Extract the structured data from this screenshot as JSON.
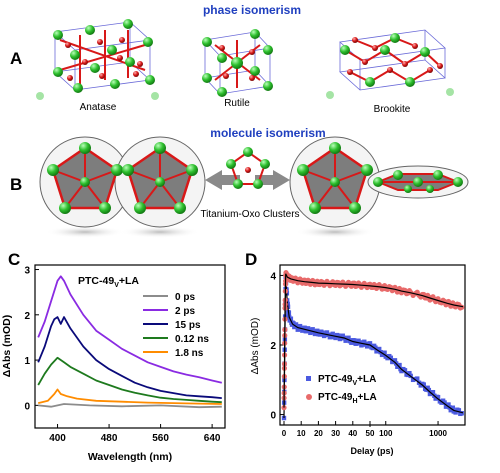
{
  "panels": {
    "A": {
      "letter": "A",
      "title": "phase isomerism",
      "structures": [
        "Anatase",
        "Rutile",
        "Brookite"
      ]
    },
    "B": {
      "letter": "B",
      "title": "molecule isomerism",
      "caption": "Titanium-Oxo Clusters"
    },
    "C": {
      "letter": "C",
      "sample_label": "PTC-49",
      "sample_sub": "V",
      "sample_suffix": "+LA"
    },
    "D": {
      "letter": "D"
    }
  },
  "colors": {
    "title_blue": "#1f3fbf",
    "ti_green": "#2dbf2d",
    "oxygen_red": "#d81818",
    "cell_blue": "#6a6ad8",
    "poly_gray": "#7d7d7d"
  },
  "chart_data": [
    {
      "type": "line",
      "panel": "C",
      "xlabel": "Wavelength (nm)",
      "ylabel": "ΔAbs (mOD)",
      "xlim": [
        365,
        660
      ],
      "ylim": [
        -0.5,
        3.1
      ],
      "xticks": [
        400,
        480,
        560,
        640
      ],
      "yticks": [
        0,
        1,
        2,
        3
      ],
      "legend_position": "top-right",
      "series": [
        {
          "name": "0 ps",
          "color": "#8c8c8c",
          "x": [
            370,
            390,
            410,
            450,
            500,
            560,
            620,
            655
          ],
          "y": [
            0.0,
            -0.03,
            0.03,
            0.0,
            -0.02,
            0.0,
            -0.04,
            -0.03
          ]
        },
        {
          "name": "2 ps",
          "color": "#8a2be2",
          "x": [
            370,
            380,
            390,
            400,
            405,
            410,
            420,
            440,
            460,
            480,
            500,
            520,
            540,
            560,
            580,
            600,
            620,
            640,
            655
          ],
          "y": [
            1.5,
            1.85,
            2.3,
            2.75,
            2.85,
            2.75,
            2.45,
            2.0,
            1.65,
            1.45,
            1.25,
            1.1,
            0.95,
            0.85,
            0.75,
            0.68,
            0.62,
            0.55,
            0.5
          ]
        },
        {
          "name": "15 ps",
          "color": "#0a0a7a",
          "x": [
            370,
            380,
            390,
            395,
            400,
            405,
            410,
            420,
            440,
            460,
            480,
            500,
            520,
            540,
            560,
            580,
            600,
            620,
            640,
            655
          ],
          "y": [
            0.95,
            1.3,
            1.75,
            1.9,
            1.95,
            1.8,
            1.95,
            1.7,
            1.3,
            1.0,
            0.8,
            0.65,
            0.5,
            0.4,
            0.32,
            0.27,
            0.22,
            0.2,
            0.18,
            0.16
          ]
        },
        {
          "name": "0.12 ns",
          "color": "#1e7a1e",
          "x": [
            370,
            380,
            390,
            400,
            410,
            420,
            440,
            460,
            480,
            500,
            520,
            540,
            560,
            580,
            600,
            620,
            640,
            655
          ],
          "y": [
            0.45,
            0.7,
            0.9,
            1.05,
            0.95,
            0.85,
            0.7,
            0.55,
            0.45,
            0.35,
            0.28,
            0.22,
            0.17,
            0.14,
            0.12,
            0.1,
            0.08,
            0.07
          ]
        },
        {
          "name": "1.8 ns",
          "color": "#ff8c00",
          "x": [
            370,
            385,
            395,
            400,
            405,
            415,
            430,
            460,
            500,
            540,
            580,
            620,
            655
          ],
          "y": [
            0.05,
            0.1,
            0.25,
            0.35,
            0.25,
            0.2,
            0.15,
            0.1,
            0.08,
            0.06,
            0.05,
            0.04,
            0.03
          ]
        }
      ]
    },
    {
      "type": "scatter",
      "panel": "D",
      "xlabel": "Delay (ps)",
      "ylabel": "ΔAbs (mOD)",
      "xticks_linear": [
        0,
        10,
        20,
        30,
        40,
        50
      ],
      "xticks_log": [
        100,
        1000
      ],
      "x_scale": "linear up to 50 ps, logarithmic beyond",
      "ylim": [
        -0.3,
        4.3
      ],
      "yticks": [
        0,
        2,
        4
      ],
      "legend_position": "bottom-right",
      "series": [
        {
          "name_main": "PTC-49",
          "name_sub": "V",
          "name_suffix": "+LA",
          "color": "#4b5ae0",
          "marker": "square",
          "x": [
            0,
            0.5,
            1,
            2,
            3,
            5,
            8,
            12,
            16,
            20,
            25,
            30,
            35,
            40,
            45,
            50,
            70,
            100,
            150,
            200,
            300,
            500,
            700,
            1000,
            1500,
            2000,
            3000
          ],
          "y": [
            -0.1,
            2.2,
            3.9,
            3.2,
            2.8,
            2.6,
            2.5,
            2.45,
            2.4,
            2.35,
            2.3,
            2.25,
            2.2,
            2.1,
            2.05,
            2.0,
            1.85,
            1.7,
            1.5,
            1.3,
            1.1,
            0.85,
            0.65,
            0.45,
            0.25,
            0.12,
            0.05
          ]
        },
        {
          "name_main": "PTC-49",
          "name_sub": "H",
          "name_suffix": "+LA",
          "color": "#e86a6a",
          "marker": "circle",
          "x": [
            0,
            0.3,
            0.6,
            1,
            2,
            4,
            8,
            12,
            16,
            20,
            25,
            30,
            35,
            40,
            45,
            50,
            70,
            100,
            150,
            200,
            300,
            500,
            700,
            1000,
            1500,
            2000,
            3000
          ],
          "y": [
            0.2,
            1.5,
            3.0,
            4.05,
            3.95,
            3.9,
            3.85,
            3.82,
            3.8,
            3.78,
            3.77,
            3.76,
            3.75,
            3.74,
            3.72,
            3.7,
            3.68,
            3.65,
            3.6,
            3.55,
            3.5,
            3.42,
            3.35,
            3.28,
            3.2,
            3.15,
            3.1
          ]
        }
      ],
      "fit_color": "#000000"
    }
  ]
}
